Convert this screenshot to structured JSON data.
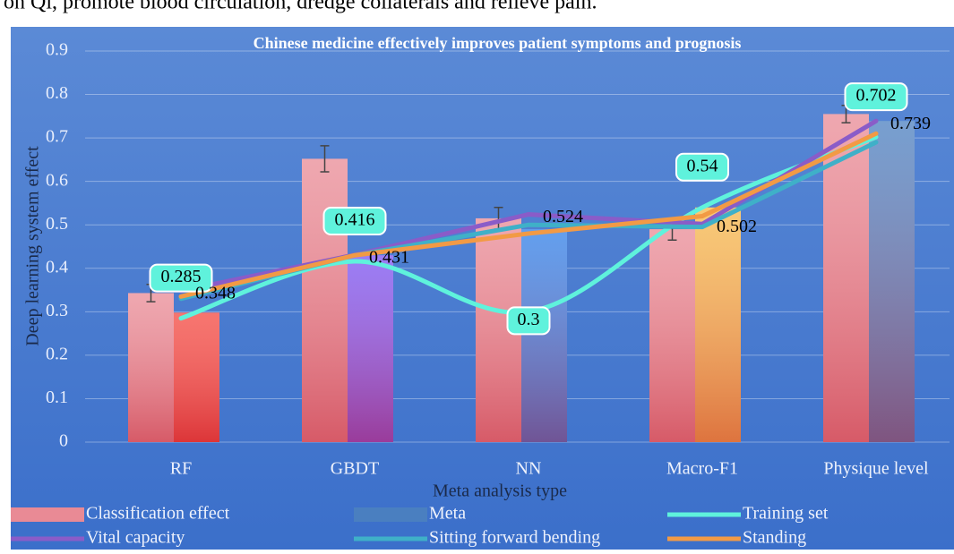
{
  "caption": "on Qi, promote blood circulation, dredge collaterals and relieve pain.",
  "chart_data": {
    "type": "bar-line",
    "title": "Chinese medicine effectively improves patient symptoms and prognosis",
    "x_label": "Meta analysis type",
    "y_label": "Deep learning system effect",
    "categories": [
      "RF",
      "GBDT",
      "NN",
      "Macro-F1",
      "Physique level"
    ],
    "ylim": [
      0,
      0.9
    ],
    "yticks": [
      0,
      0.1,
      0.2,
      0.3,
      0.4,
      0.5,
      0.6,
      0.7,
      0.8,
      0.9
    ],
    "legend_position": "bottom",
    "series": [
      {
        "name": "Classification effect",
        "kind": "bar",
        "color": "#e98a95",
        "values": [
          0.343,
          0.652,
          0.515,
          0.49,
          0.755
        ],
        "errors": [
          0.02,
          0.03,
          0.025,
          0.025,
          0.02
        ]
      },
      {
        "name": "Meta",
        "kind": "bar",
        "colors": [
          "#f4473f",
          "#7a52f2",
          "#2f7fe8",
          "#f6b84a",
          "#4a7fc0"
        ],
        "values": [
          0.298,
          0.43,
          0.49,
          0.54,
          0.739
        ]
      },
      {
        "name": "Training set",
        "kind": "line",
        "smooth": true,
        "boxed_labels": true,
        "color": "#5ff2dc",
        "values": [
          0.285,
          0.416,
          0.3,
          0.54,
          0.702
        ]
      },
      {
        "name": "Vital capacity",
        "kind": "line",
        "show_labels": true,
        "color": "#8a5cc8",
        "values": [
          0.348,
          0.431,
          0.524,
          0.502,
          0.739
        ]
      },
      {
        "name": "Sitting forward bending",
        "kind": "line",
        "color": "#3fb0c8",
        "values": [
          0.33,
          0.43,
          0.5,
          0.495,
          0.69
        ]
      },
      {
        "name": "Standing",
        "kind": "line",
        "color": "#f29a45",
        "values": [
          0.335,
          0.43,
          0.48,
          0.52,
          0.71
        ]
      }
    ]
  }
}
